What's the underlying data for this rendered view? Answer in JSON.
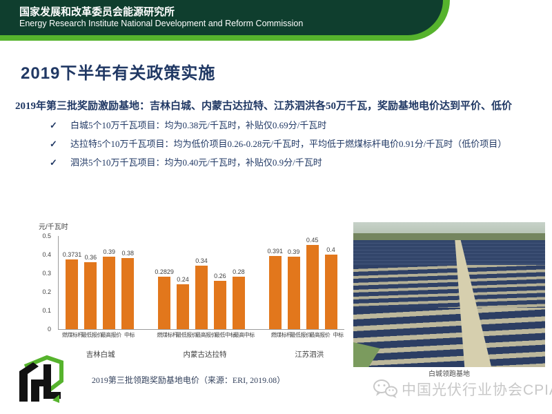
{
  "header": {
    "title_zh": "国家发展和改革委员会能源研究所",
    "title_en": "Energy Research Institute National Development and Reform Commission"
  },
  "slide": {
    "title": "2019下半年有关政策实施",
    "lead": "2019年第三批奖励激励基地：吉林白城、内蒙古达拉特、江苏泗洪各50万千瓦，奖励基地电价达到平价、低价",
    "bullets": [
      {
        "mark": "✓",
        "text": "白城5个10万千瓦项目：均为0.38元/千瓦时，补贴仅0.69分/千瓦时"
      },
      {
        "mark": "✓",
        "text": "达拉特5个10万千瓦项目：均为低价项目0.26-0.28元/千瓦时，平均低于燃煤标杆电价0.91分/千瓦时（低价项目）"
      },
      {
        "mark": "✓",
        "text": "泗洪5个10万千瓦项目：均为0.40元/千瓦时，补贴仅0.9分/千瓦时"
      }
    ]
  },
  "chart_data": {
    "type": "bar",
    "unit_label": "元/千瓦时",
    "ylim": [
      0,
      0.5
    ],
    "yticks": [
      0,
      0.1,
      0.2,
      0.3,
      0.4,
      0.5
    ],
    "bar_color": "#e2771c",
    "grid": false,
    "legend": "none",
    "groups": [
      {
        "name": "吉林白城",
        "categories": [
          "燃煤标杆",
          "最低报价",
          "最高报价",
          "中标"
        ],
        "values": [
          0.3731,
          0.36,
          0.39,
          0.38
        ]
      },
      {
        "name": "内蒙古达拉特",
        "categories": [
          "燃煤标杆",
          "最低报价",
          "最高报价",
          "最低中标",
          "最高中标"
        ],
        "values": [
          0.2829,
          0.24,
          0.34,
          0.26,
          0.28
        ]
      },
      {
        "name": "江苏泗洪",
        "categories": [
          "燃煤标杆",
          "最低报价",
          "最高报价",
          "中标"
        ],
        "values": [
          0.391,
          0.39,
          0.45,
          0.4
        ]
      }
    ],
    "caption": "2019第三批领跑奖励基地电价（来源：ERI, 2019.08）"
  },
  "photo": {
    "caption": "白城领跑基地",
    "description": "solar-farm-aerial-photo"
  },
  "footer": {
    "watermark": "中国光伏行业协会CPIA",
    "wechat_icon": "wechat-icon",
    "logo": "eri-logo"
  },
  "colors": {
    "header_dark_green": "#0f3e2e",
    "accent_green": "#56b32d",
    "title_navy": "#203864",
    "bar_orange": "#e2771c",
    "watermark_gray": "#c8c8c8"
  }
}
